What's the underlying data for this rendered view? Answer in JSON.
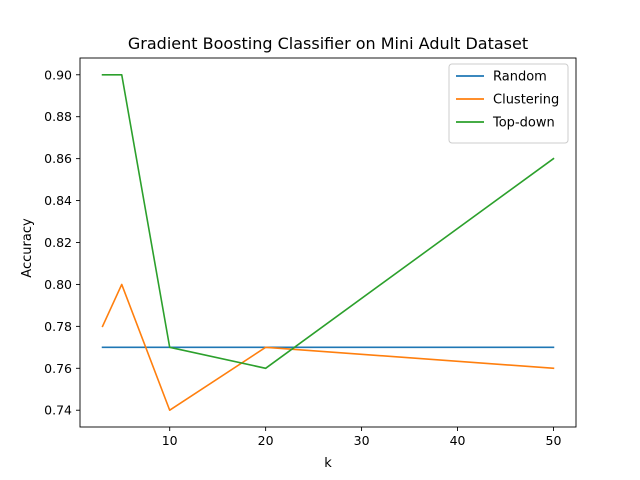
{
  "chart_data": {
    "type": "line",
    "title": "Gradient Boosting Classifier on Mini Adult Dataset",
    "xlabel": "k",
    "ylabel": "Accuracy",
    "xlim": [
      0.65,
      52.35
    ],
    "ylim": [
      0.732,
      0.908
    ],
    "xticks": [
      10,
      20,
      30,
      40,
      50
    ],
    "yticks": [
      0.74,
      0.76,
      0.78,
      0.8,
      0.82,
      0.84,
      0.86,
      0.88,
      0.9
    ],
    "ytick_labels": [
      "0.74",
      "0.76",
      "0.78",
      "0.80",
      "0.82",
      "0.84",
      "0.86",
      "0.88",
      "0.90"
    ],
    "x": [
      3,
      5,
      10,
      20,
      50
    ],
    "legend_position": "top-right",
    "grid": false,
    "series": [
      {
        "name": "Random",
        "color": "#1f77b4",
        "values": [
          0.77,
          0.77,
          0.77,
          0.77,
          0.77
        ]
      },
      {
        "name": "Clustering",
        "color": "#ff7f0e",
        "values": [
          0.78,
          0.8,
          0.74,
          0.77,
          0.76
        ]
      },
      {
        "name": "Top-down",
        "color": "#2ca02c",
        "values": [
          0.9,
          0.9,
          0.77,
          0.76,
          0.86
        ]
      }
    ]
  }
}
